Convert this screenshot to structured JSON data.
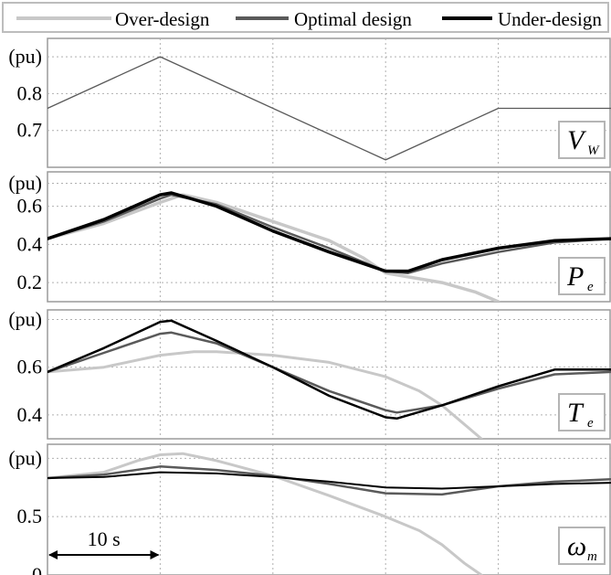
{
  "chart_data": {
    "type": "line",
    "legend": {
      "position": "top",
      "entries": [
        {
          "label": "Over-design",
          "color": "#c8c8c8"
        },
        {
          "label": "Optimal design",
          "color": "#5a5a5a"
        },
        {
          "label": "Under-design",
          "color": "#000000"
        }
      ]
    },
    "x_time": [
      0,
      5,
      10,
      15,
      20,
      25,
      30,
      35,
      40,
      45,
      50
    ],
    "scale_bar": {
      "label": "10 s",
      "from": 0,
      "to": 10
    },
    "x_gridlines": [
      10,
      20,
      30,
      40
    ],
    "grid": true,
    "panels": [
      {
        "id": "wind-speed",
        "symbol": "V",
        "subscript": "W",
        "ylabel": "(pu)",
        "ylim": [
          0.6,
          0.95
        ],
        "yticks": [
          {
            "v": 0.9,
            "label": "(pu)"
          },
          {
            "v": 0.8,
            "label": "0.8"
          },
          {
            "v": 0.7,
            "label": "0.7"
          }
        ],
        "series": [
          {
            "color": "#5a5a5a",
            "width": 1.3,
            "x": [
              0,
              10,
              30,
              40,
              50
            ],
            "y": [
              0.76,
              0.9,
              0.62,
              0.76,
              0.76
            ]
          }
        ]
      },
      {
        "id": "electrical-power",
        "symbol": "P",
        "subscript": "e",
        "ylabel": "(pu)",
        "ylim": [
          0.1,
          0.78
        ],
        "yticks": [
          {
            "v": 0.72,
            "label": "(pu)"
          },
          {
            "v": 0.6,
            "label": "0.6"
          },
          {
            "v": 0.4,
            "label": "0.4"
          },
          {
            "v": 0.2,
            "label": "0.2"
          }
        ],
        "series": [
          {
            "color": "#c8c8c8",
            "width": 3.5,
            "x": [
              0,
              5,
              10,
              12,
              15,
              20,
              25,
              28,
              30,
              32,
              35,
              38,
              40
            ],
            "y": [
              0.43,
              0.51,
              0.62,
              0.66,
              0.62,
              0.52,
              0.42,
              0.33,
              0.25,
              0.23,
              0.2,
              0.15,
              0.1
            ]
          },
          {
            "color": "#5a5a5a",
            "width": 2.5,
            "x": [
              0,
              5,
              10,
              11,
              15,
              20,
              25,
              30,
              32,
              35,
              40,
              45,
              50
            ],
            "y": [
              0.43,
              0.52,
              0.64,
              0.66,
              0.61,
              0.49,
              0.38,
              0.26,
              0.25,
              0.3,
              0.36,
              0.41,
              0.43
            ]
          },
          {
            "color": "#000000",
            "width": 3.5,
            "x": [
              0,
              5,
              10,
              11,
              15,
              20,
              25,
              30,
              32,
              35,
              40,
              45,
              50
            ],
            "y": [
              0.43,
              0.53,
              0.66,
              0.67,
              0.6,
              0.47,
              0.36,
              0.26,
              0.26,
              0.32,
              0.38,
              0.42,
              0.43
            ]
          }
        ]
      },
      {
        "id": "torque",
        "symbol": "T",
        "subscript": "e",
        "ylabel": "(pu)",
        "ylim": [
          0.3,
          0.84
        ],
        "yticks": [
          {
            "v": 0.8,
            "label": "(pu)"
          },
          {
            "v": 0.6,
            "label": "0.6"
          },
          {
            "v": 0.4,
            "label": "0.4"
          }
        ],
        "series": [
          {
            "color": "#c8c8c8",
            "width": 3,
            "x": [
              0,
              5,
              10,
              13,
              15,
              20,
              25,
              30,
              33,
              35,
              37,
              38.5
            ],
            "y": [
              0.58,
              0.6,
              0.65,
              0.665,
              0.665,
              0.65,
              0.62,
              0.56,
              0.5,
              0.44,
              0.36,
              0.3
            ]
          },
          {
            "color": "#5a5a5a",
            "width": 2.5,
            "x": [
              0,
              5,
              10,
              11,
              15,
              20,
              25,
              30,
              31,
              35,
              40,
              45,
              50
            ],
            "y": [
              0.58,
              0.66,
              0.74,
              0.745,
              0.7,
              0.6,
              0.5,
              0.42,
              0.41,
              0.44,
              0.51,
              0.57,
              0.58
            ]
          },
          {
            "color": "#000000",
            "width": 2.5,
            "x": [
              0,
              5,
              10,
              11,
              15,
              20,
              25,
              30,
              31,
              35,
              40,
              45,
              50
            ],
            "y": [
              0.58,
              0.68,
              0.79,
              0.795,
              0.71,
              0.6,
              0.48,
              0.39,
              0.385,
              0.44,
              0.52,
              0.59,
              0.59
            ]
          }
        ]
      },
      {
        "id": "rotor-speed",
        "symbol": "ω",
        "subscript": "m",
        "ylabel": "(pu)",
        "ylim": [
          0,
          1.12
        ],
        "yticks": [
          {
            "v": 1.0,
            "label": "(pu)"
          },
          {
            "v": 0.5,
            "label": "0.5"
          },
          {
            "v": 0,
            "label": "0"
          }
        ],
        "series": [
          {
            "color": "#c8c8c8",
            "width": 3,
            "x": [
              0,
              5,
              8,
              10,
              12,
              15,
              20,
              25,
              30,
              33,
              35,
              37,
              38.5
            ],
            "y": [
              0.83,
              0.88,
              0.98,
              1.03,
              1.04,
              0.98,
              0.85,
              0.68,
              0.5,
              0.38,
              0.26,
              0.1,
              0
            ]
          },
          {
            "color": "#5a5a5a",
            "width": 2.5,
            "x": [
              0,
              5,
              10,
              15,
              20,
              25,
              30,
              35,
              40,
              45,
              50
            ],
            "y": [
              0.83,
              0.86,
              0.93,
              0.9,
              0.85,
              0.78,
              0.7,
              0.69,
              0.76,
              0.8,
              0.82
            ]
          },
          {
            "color": "#000000",
            "width": 2,
            "x": [
              0,
              5,
              10,
              15,
              20,
              25,
              30,
              35,
              40,
              45,
              50
            ],
            "y": [
              0.83,
              0.84,
              0.88,
              0.87,
              0.84,
              0.8,
              0.75,
              0.74,
              0.76,
              0.78,
              0.79
            ]
          }
        ]
      }
    ]
  }
}
